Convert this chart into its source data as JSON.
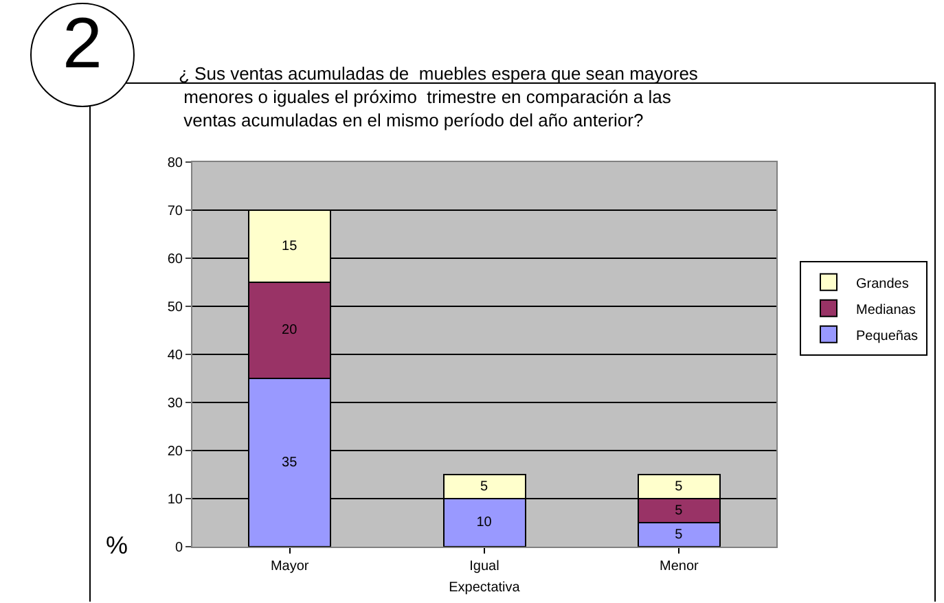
{
  "chart_data": {
    "type": "bar",
    "stacked": true,
    "title": "¿ Sus ventas acumuladas de  muebles espera que sean mayores\n menores o iguales el próximo  trimestre en comparación a las\n ventas acumuladas en el mismo período del año anterior?",
    "xlabel": "Expectativa",
    "ylabel": "%",
    "annotations": [
      "2"
    ],
    "categories": [
      "Mayor",
      "Igual",
      "Menor"
    ],
    "series": [
      {
        "name": "Pequeñas",
        "color": "#9999ff",
        "values": [
          35,
          10,
          5
        ],
        "value_labels": [
          "35",
          "10",
          "5"
        ]
      },
      {
        "name": "Medianas",
        "color": "#993366",
        "values": [
          20,
          0,
          5
        ],
        "value_labels": [
          "20",
          null,
          "5"
        ]
      },
      {
        "name": "Grandes",
        "color": "#ffffcc",
        "values": [
          15,
          5,
          5
        ],
        "value_labels": [
          "15",
          "5",
          "5"
        ]
      }
    ],
    "ylim": [
      0,
      80
    ],
    "yticks": [
      0,
      10,
      20,
      30,
      40,
      50,
      60,
      70,
      80
    ],
    "grid": "y",
    "legend": "right"
  }
}
